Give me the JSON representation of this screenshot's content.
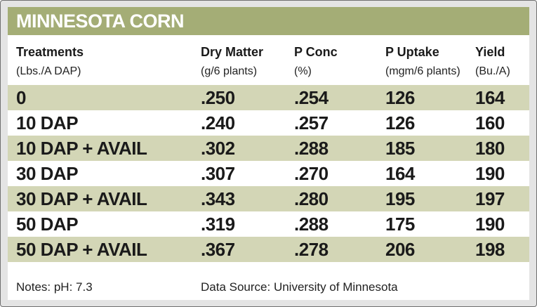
{
  "title": "MINNESOTA CORN",
  "columns": [
    {
      "label": "Treatments",
      "unit": "(Lbs./A DAP)"
    },
    {
      "label": "Dry Matter",
      "unit": "(g/6 plants)"
    },
    {
      "label": "P Conc",
      "unit": "(%)"
    },
    {
      "label": "P Uptake",
      "unit": "(mgm/6 plants)"
    },
    {
      "label": "Yield",
      "unit": "(Bu./A)"
    }
  ],
  "rows": [
    [
      "0",
      ".250",
      ".254",
      "126",
      "164"
    ],
    [
      "10 DAP",
      ".240",
      ".257",
      "126",
      "160"
    ],
    [
      "10 DAP + AVAIL",
      ".302",
      ".288",
      "185",
      "180"
    ],
    [
      "30 DAP",
      ".307",
      ".270",
      "164",
      "190"
    ],
    [
      "30 DAP + AVAIL",
      ".343",
      ".280",
      "195",
      "197"
    ],
    [
      "50 DAP",
      ".319",
      ".288",
      "175",
      "190"
    ],
    [
      "50 DAP + AVAIL",
      ".367",
      ".278",
      "206",
      "198"
    ]
  ],
  "notes": "Notes: pH: 7.3",
  "source": "Data Source: University of Minnesota",
  "colors": {
    "header_band": "#a4ad76",
    "row_shade": "#d3d6b6",
    "frame": "#e4e4e4"
  },
  "chart_data": {
    "type": "table",
    "title": "MINNESOTA CORN",
    "columns": [
      "Treatments (Lbs./A DAP)",
      "Dry Matter (g/6 plants)",
      "P Conc (%)",
      "P Uptake (mgm/6 plants)",
      "Yield (Bu./A)"
    ],
    "rows": [
      [
        "0",
        0.25,
        0.254,
        126,
        164
      ],
      [
        "10 DAP",
        0.24,
        0.257,
        126,
        160
      ],
      [
        "10 DAP + AVAIL",
        0.302,
        0.288,
        185,
        180
      ],
      [
        "30 DAP",
        0.307,
        0.27,
        164,
        190
      ],
      [
        "30 DAP + AVAIL",
        0.343,
        0.28,
        195,
        197
      ],
      [
        "50 DAP",
        0.319,
        0.288,
        175,
        190
      ],
      [
        "50 DAP + AVAIL",
        0.367,
        0.278,
        206,
        198
      ]
    ]
  }
}
